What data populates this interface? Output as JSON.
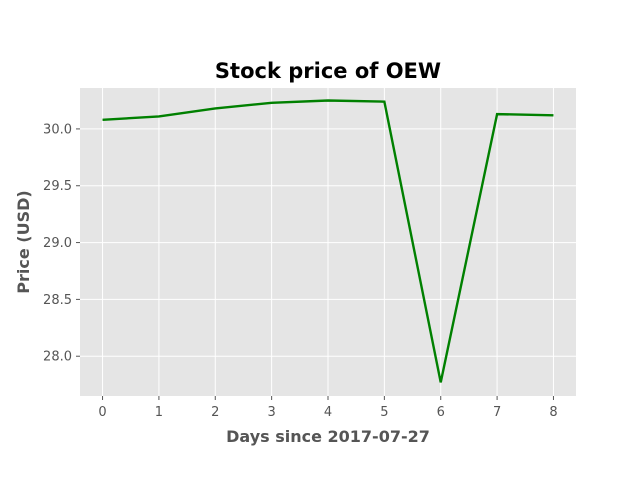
{
  "chart_data": {
    "type": "line",
    "title": "Stock price of OEW",
    "xlabel": "Days since 2017-07-27",
    "ylabel": "Price (USD)",
    "x": [
      0,
      1,
      2,
      3,
      4,
      5,
      6,
      7,
      8
    ],
    "series": [
      {
        "values": [
          30.08,
          30.11,
          30.18,
          30.23,
          30.25,
          30.24,
          27.77,
          30.13,
          30.12
        ]
      }
    ],
    "xlim": [
      -0.4,
      8.4
    ],
    "ylim": [
      27.65,
      30.36
    ],
    "xticks": [
      0,
      1,
      2,
      3,
      4,
      5,
      6,
      7,
      8
    ],
    "yticks": [
      28.0,
      28.5,
      29.0,
      29.5,
      30.0
    ],
    "ytick_labels": [
      "28.0",
      "28.5",
      "29.0",
      "29.5",
      "30.0"
    ],
    "grid": true,
    "line_color": "#008000",
    "background_color": "#e5e5e5",
    "grid_color": "#ffffff"
  }
}
